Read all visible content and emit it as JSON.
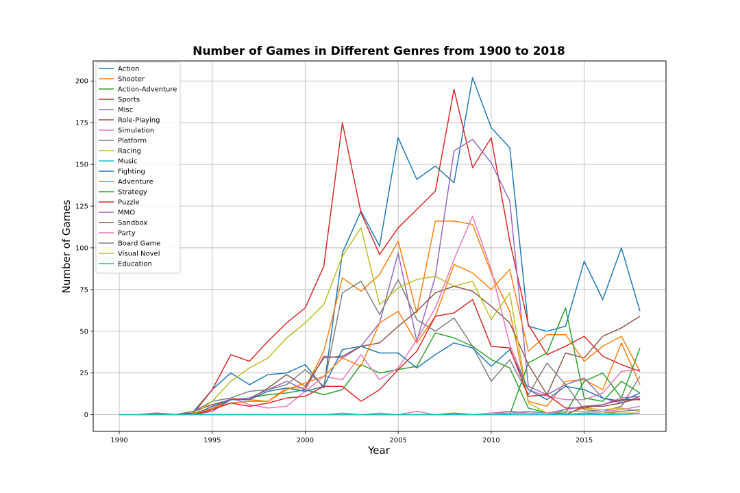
{
  "chart_data": {
    "type": "line",
    "title": "Number of Games in Different Genres from 1900 to 2018",
    "xlabel": "Year",
    "ylabel": "Number of Games",
    "xlim": [
      1988.6,
      2019.4
    ],
    "ylim": [
      -10,
      212
    ],
    "xticks": [
      1990,
      1995,
      2000,
      2005,
      2010,
      2015
    ],
    "yticks": [
      0,
      25,
      50,
      75,
      100,
      125,
      150,
      175,
      200
    ],
    "grid": true,
    "legend_position": "top-left",
    "x": [
      1990,
      1991,
      1992,
      1993,
      1994,
      1995,
      1996,
      1997,
      1998,
      1999,
      2000,
      2001,
      2002,
      2003,
      2004,
      2005,
      2006,
      2007,
      2008,
      2009,
      2010,
      2011,
      2012,
      2013,
      2014,
      2015,
      2016,
      2017,
      2018
    ],
    "series": [
      {
        "name": "Action",
        "color": "#1f77b4",
        "values": [
          0,
          0,
          1,
          0,
          2,
          15,
          25,
          18,
          24,
          25,
          30,
          16,
          97,
          122,
          101,
          166,
          141,
          149,
          139,
          202,
          172,
          160,
          53,
          50,
          53,
          92,
          69,
          100,
          62
        ]
      },
      {
        "name": "Shooter",
        "color": "#ff7f0e",
        "values": [
          0,
          0,
          0,
          0,
          1,
          3,
          10,
          9,
          8,
          16,
          16,
          38,
          82,
          74,
          84,
          104,
          61,
          116,
          116,
          114,
          85,
          62,
          8,
          5,
          20,
          21,
          15,
          43,
          18
        ]
      },
      {
        "name": "Action-Adventure",
        "color": "#2ca02c",
        "values": [
          0,
          0,
          0,
          0,
          0,
          3,
          9,
          10,
          12,
          13,
          15,
          12,
          15,
          30,
          25,
          27,
          29,
          49,
          46,
          41,
          33,
          28,
          4,
          1,
          1,
          20,
          25,
          10,
          40
        ]
      },
      {
        "name": "Sports",
        "color": "#d62728",
        "values": [
          0,
          0,
          0,
          0,
          1,
          15,
          36,
          32,
          44,
          55,
          64,
          89,
          175,
          121,
          96,
          112,
          123,
          134,
          195,
          148,
          166,
          104,
          54,
          36,
          41,
          47,
          35,
          30,
          26
        ]
      },
      {
        "name": "Misc",
        "color": "#9467bd",
        "values": [
          0,
          0,
          0,
          0,
          0,
          2,
          9,
          10,
          15,
          20,
          15,
          35,
          34,
          41,
          55,
          97,
          44,
          83,
          158,
          165,
          151,
          128,
          17,
          12,
          18,
          22,
          10,
          7,
          11
        ]
      },
      {
        "name": "Role-Playing",
        "color": "#8c564b",
        "values": [
          0,
          0,
          1,
          0,
          2,
          6,
          9,
          9,
          16,
          24,
          17,
          34,
          35,
          41,
          43,
          53,
          62,
          73,
          77,
          74,
          65,
          55,
          30,
          12,
          37,
          34,
          47,
          52,
          59
        ]
      },
      {
        "name": "Simulation",
        "color": "#e377c2",
        "values": [
          0,
          0,
          0,
          0,
          0,
          4,
          10,
          6,
          4,
          5,
          14,
          23,
          21,
          36,
          21,
          28,
          45,
          64,
          93,
          119,
          87,
          42,
          15,
          11,
          9,
          9,
          13,
          26,
          27
        ]
      },
      {
        "name": "Platform",
        "color": "#7f7f7f",
        "values": [
          0,
          0,
          1,
          0,
          2,
          8,
          10,
          14,
          15,
          18,
          27,
          17,
          73,
          80,
          60,
          81,
          57,
          50,
          58,
          41,
          20,
          33,
          12,
          31,
          18,
          3,
          2,
          5,
          23
        ]
      },
      {
        "name": "Racing",
        "color": "#bcbd22",
        "values": [
          0,
          0,
          0,
          0,
          0,
          8,
          20,
          28,
          34,
          46,
          55,
          66,
          95,
          112,
          66,
          76,
          81,
          83,
          77,
          80,
          57,
          73,
          7,
          1,
          0,
          4,
          3,
          4,
          2
        ]
      },
      {
        "name": "Music",
        "color": "#17becf",
        "values": [
          0,
          0,
          0,
          0,
          0,
          0,
          0,
          0,
          0,
          0,
          0,
          0,
          0,
          0,
          0,
          0,
          0,
          0,
          0,
          0,
          0,
          1,
          2,
          1,
          0,
          1,
          0,
          1,
          1
        ]
      },
      {
        "name": "Fighting",
        "color": "#1f77b4",
        "values": [
          0,
          0,
          0,
          0,
          0,
          5,
          9,
          9,
          14,
          16,
          14,
          17,
          39,
          41,
          37,
          37,
          28,
          36,
          43,
          40,
          29,
          39,
          15,
          9,
          17,
          15,
          10,
          8,
          13
        ]
      },
      {
        "name": "Adventure",
        "color": "#ff7f0e",
        "values": [
          0,
          0,
          0,
          0,
          0,
          4,
          7,
          8,
          8,
          15,
          19,
          23,
          34,
          29,
          55,
          62,
          43,
          59,
          90,
          85,
          75,
          87,
          38,
          48,
          48,
          32,
          41,
          47,
          26
        ]
      },
      {
        "name": "Strategy",
        "color": "#2ca02c",
        "values": [
          0,
          0,
          0,
          0,
          0,
          0,
          0,
          0,
          0,
          0,
          0,
          0,
          0,
          0,
          0,
          0,
          0,
          0,
          1,
          0,
          0,
          0,
          31,
          37,
          64,
          10,
          8,
          20,
          13
        ]
      },
      {
        "name": "Puzzle",
        "color": "#d62728",
        "values": [
          0,
          0,
          0,
          0,
          0,
          3,
          7,
          5,
          7,
          10,
          11,
          17,
          17,
          8,
          15,
          27,
          38,
          59,
          61,
          69,
          41,
          40,
          11,
          12,
          4,
          4,
          6,
          9,
          9
        ]
      },
      {
        "name": "MMO",
        "color": "#9467bd",
        "values": [
          0,
          0,
          0,
          0,
          0,
          0,
          0,
          0,
          0,
          0,
          0,
          0,
          0,
          0,
          0,
          0,
          0,
          0,
          0,
          0,
          1,
          2,
          1,
          1,
          3,
          5,
          6,
          10,
          11
        ]
      },
      {
        "name": "Sandbox",
        "color": "#8c564b",
        "values": [
          0,
          0,
          0,
          0,
          0,
          0,
          0,
          0,
          0,
          0,
          0,
          0,
          0,
          0,
          0,
          0,
          0,
          0,
          0,
          0,
          0,
          0,
          0,
          0,
          0,
          5,
          5,
          7,
          10
        ]
      },
      {
        "name": "Party",
        "color": "#e377c2",
        "values": [
          0,
          0,
          0,
          0,
          0,
          0,
          0,
          0,
          0,
          0,
          0,
          0,
          1,
          0,
          1,
          0,
          2,
          0,
          0,
          0,
          1,
          1,
          1,
          1,
          2,
          2,
          2,
          3,
          5
        ]
      },
      {
        "name": "Board Game",
        "color": "#7f7f7f",
        "values": [
          0,
          0,
          0,
          0,
          0,
          0,
          0,
          0,
          0,
          0,
          0,
          0,
          0,
          0,
          0,
          0,
          0,
          0,
          0,
          0,
          0,
          0,
          0,
          0,
          0,
          1,
          1,
          2,
          3
        ]
      },
      {
        "name": "Visual Novel",
        "color": "#bcbd22",
        "values": [
          0,
          0,
          0,
          0,
          0,
          0,
          0,
          0,
          0,
          0,
          0,
          0,
          0,
          0,
          0,
          0,
          0,
          0,
          0,
          0,
          0,
          0,
          0,
          0,
          0,
          0,
          1,
          1,
          1
        ]
      },
      {
        "name": "Education",
        "color": "#17becf",
        "values": [
          0,
          0,
          0,
          0,
          0,
          0,
          0,
          0,
          0,
          0,
          0,
          0,
          0,
          0,
          0,
          0,
          0,
          0,
          0,
          0,
          0,
          0,
          0,
          0,
          0,
          0,
          0,
          0,
          1
        ]
      }
    ]
  }
}
